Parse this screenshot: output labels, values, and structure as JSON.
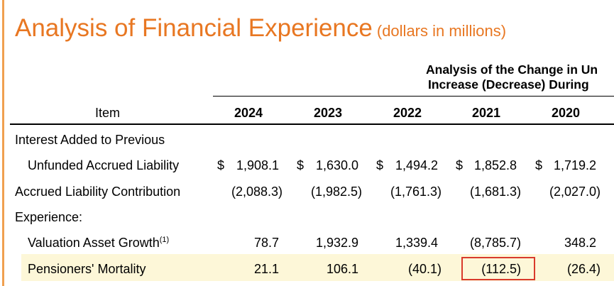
{
  "title": {
    "main": "Analysis of Financial Experience",
    "sub": "(dollars in millions)"
  },
  "banner": {
    "line1": "Analysis of the Change in Un",
    "line2": "Increase (Decrease) During"
  },
  "table": {
    "item_header": "Item",
    "years": [
      "2024",
      "2023",
      "2022",
      "2021",
      "2020"
    ],
    "rows": [
      {
        "label": "Interest Added to Previous",
        "values": [
          "",
          "",
          "",
          "",
          ""
        ]
      },
      {
        "label": "Unfunded Accrued Liability",
        "currency": "$",
        "values": [
          "1,908.1",
          "1,630.0",
          "1,494.2",
          "1,852.8",
          "1,719.2"
        ]
      },
      {
        "label": "Accrued Liability Contribution",
        "values": [
          "(2,088.3)",
          "(1,982.5)",
          "(1,761.3)",
          "(1,681.3)",
          "(2,027.0)"
        ]
      },
      {
        "label": "Experience:",
        "values": [
          "",
          "",
          "",
          "",
          ""
        ]
      },
      {
        "label": "Valuation Asset Growth",
        "footnote": "(1)",
        "values": [
          "78.7",
          "1,932.9",
          "1,339.4",
          "(8,785.7)",
          "348.2"
        ]
      },
      {
        "label": "Pensioners' Mortality",
        "values": [
          "21.1",
          "106.1",
          "(40.1)",
          "(112.5)",
          "(26.4)"
        ]
      }
    ]
  },
  "highlight": {
    "row": "Pensioners' Mortality",
    "year": "2021",
    "value": "(112.5)",
    "color": "#d93a2b"
  },
  "colors": {
    "title": "#e87722",
    "row_highlight": "#fdf7d8",
    "rule": "#f0a050"
  }
}
